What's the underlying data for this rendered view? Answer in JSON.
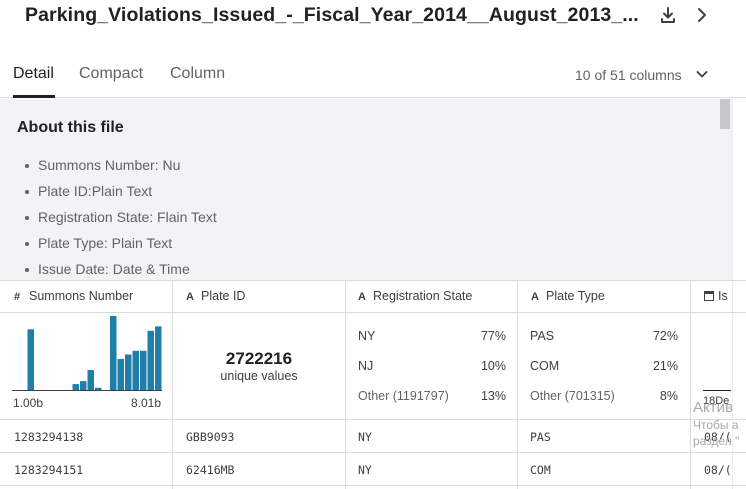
{
  "header": {
    "title": "Parking_Violations_Issued_-_Fiscal_Year_2014__August_2013_...",
    "download_icon": "download-icon",
    "next_icon": "chevron-right-icon"
  },
  "tabs": {
    "items": [
      {
        "label": "Detail",
        "active": true
      },
      {
        "label": "Compact",
        "active": false
      },
      {
        "label": "Column",
        "active": false
      }
    ],
    "column_count": "10 of 51 columns"
  },
  "about": {
    "title": "About this file",
    "items": [
      "Summons Number: Nu",
      "Plate ID:Plain Text",
      "Registration State: Flain Text",
      "Plate Type: Plain Text",
      "Issue Date: Date & Time"
    ]
  },
  "columns": [
    {
      "type_icon": "#",
      "label": "Summons Number"
    },
    {
      "type_icon": "A",
      "label": "Plate ID"
    },
    {
      "type_icon": "A",
      "label": "Registration State"
    },
    {
      "type_icon": "A",
      "label": "Plate Type"
    },
    {
      "type_icon": "calendar-icon",
      "label": "Is"
    }
  ],
  "summons_summary": {
    "histogram_color": "#1f7fa8",
    "bars": [
      0,
      0,
      0.82,
      0,
      0,
      0,
      0,
      0,
      0.08,
      0.12,
      0.27,
      0.03,
      0,
      1.0,
      0.42,
      0.48,
      0.53,
      0.53,
      0.8,
      0.86
    ],
    "min_label": "1.00b",
    "max_label": "8.01b"
  },
  "plate_summary": {
    "unique_count": "2722216",
    "unique_label": "unique values"
  },
  "reg_state_summary": {
    "rows": [
      {
        "label": "NY",
        "pct": "77%"
      },
      {
        "label": "NJ",
        "pct": "10%"
      },
      {
        "label": "Other (1191797)",
        "pct": "13%"
      }
    ]
  },
  "plate_type_summary": {
    "rows": [
      {
        "label": "PAS",
        "pct": "72%"
      },
      {
        "label": "COM",
        "pct": "21%"
      },
      {
        "label": "Other (701315)",
        "pct": "8%"
      }
    ]
  },
  "issue_date_summary": {
    "stub_label": "18De"
  },
  "rows": [
    {
      "summons": "1283294138",
      "plate": "GBB9093",
      "state": "NY",
      "type": "PAS",
      "date": "08/("
    },
    {
      "summons": "1283294151",
      "plate": "62416MB",
      "state": "NY",
      "type": "COM",
      "date": "08/("
    }
  ],
  "watermark": {
    "line1": "Актив",
    "line2": "Чтобы а",
    "line3": "раздел \""
  }
}
